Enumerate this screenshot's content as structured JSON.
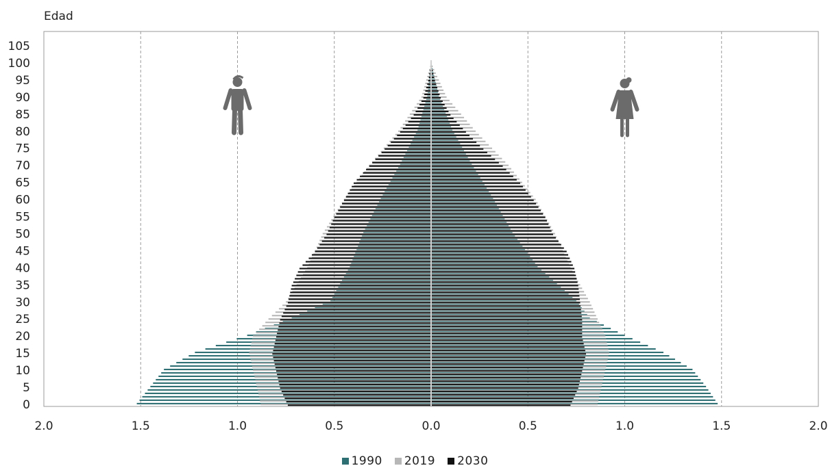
{
  "chart_data": {
    "type": "bar",
    "orientation": "horizontal",
    "subtype": "population-pyramid",
    "ylabel": "Edad",
    "xlabel": "",
    "title": "",
    "xlim": [
      -2.0,
      2.0
    ],
    "ylim": [
      0,
      105
    ],
    "x_ticks": [
      -2.0,
      -1.5,
      -1.0,
      -0.5,
      0.0,
      0.5,
      1.0,
      1.5,
      2.0
    ],
    "x_tick_labels": [
      "2.0",
      "1.5",
      "1.0",
      "0.5",
      "0.0",
      "0.5",
      "1.0",
      "1.5",
      "2.0"
    ],
    "y_ticks": [
      0,
      5,
      10,
      15,
      20,
      25,
      30,
      35,
      40,
      45,
      50,
      55,
      60,
      65,
      70,
      75,
      80,
      85,
      90,
      95,
      100,
      105
    ],
    "y_tick_labels": [
      "0",
      "5",
      "10",
      "15",
      "20",
      "25",
      "30",
      "35",
      "40",
      "45",
      "50",
      "55",
      "60",
      "65",
      "70",
      "75",
      "80",
      "85",
      "90",
      "95",
      "100",
      "105"
    ],
    "grid": "vertical-dashed",
    "legend_position": "bottom-center",
    "left_side": "men",
    "right_side": "women",
    "colors": {
      "1990": "#2e6f74",
      "2019": "#b7b7b7",
      "2030": "#111111",
      "grid": "#9a9a9a",
      "icon": "#6b6b6b"
    },
    "series": [
      {
        "name": "1990",
        "ages": [
          0,
          5,
          10,
          15,
          20,
          25,
          30,
          40,
          50,
          60,
          70,
          80,
          90,
          100
        ],
        "male": [
          1.52,
          1.45,
          1.38,
          1.22,
          0.95,
          0.72,
          0.52,
          0.42,
          0.35,
          0.26,
          0.16,
          0.07,
          0.02,
          0.0
        ],
        "female": [
          1.48,
          1.42,
          1.35,
          1.2,
          1.0,
          0.82,
          0.75,
          0.55,
          0.42,
          0.32,
          0.21,
          0.11,
          0.04,
          0.0
        ]
      },
      {
        "name": "2019",
        "ages": [
          0,
          5,
          10,
          15,
          20,
          25,
          30,
          40,
          50,
          60,
          70,
          80,
          90,
          100
        ],
        "male": [
          0.88,
          0.9,
          0.92,
          0.94,
          0.92,
          0.84,
          0.75,
          0.64,
          0.56,
          0.45,
          0.32,
          0.17,
          0.05,
          0.0
        ],
        "female": [
          0.86,
          0.88,
          0.9,
          0.92,
          0.9,
          0.86,
          0.82,
          0.72,
          0.64,
          0.54,
          0.4,
          0.23,
          0.08,
          0.0
        ]
      },
      {
        "name": "2030",
        "ages": [
          0,
          5,
          10,
          15,
          20,
          25,
          30,
          35,
          40,
          45,
          50,
          55,
          60,
          65,
          70,
          75,
          80,
          85,
          90,
          95,
          100
        ],
        "male": [
          0.74,
          0.78,
          0.8,
          0.82,
          0.8,
          0.78,
          0.74,
          0.72,
          0.68,
          0.6,
          0.54,
          0.5,
          0.45,
          0.4,
          0.32,
          0.24,
          0.16,
          0.09,
          0.04,
          0.015,
          0.0
        ],
        "female": [
          0.72,
          0.76,
          0.78,
          0.8,
          0.78,
          0.78,
          0.77,
          0.76,
          0.74,
          0.7,
          0.63,
          0.59,
          0.53,
          0.46,
          0.37,
          0.27,
          0.18,
          0.1,
          0.05,
          0.02,
          0.0
        ]
      }
    ],
    "icons": [
      "man-icon",
      "woman-icon"
    ]
  }
}
